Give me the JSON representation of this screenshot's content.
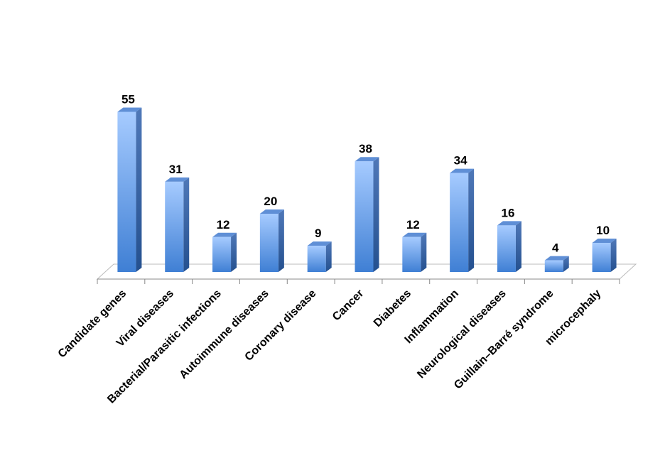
{
  "chart_data": {
    "type": "bar",
    "categories": [
      "Candidate genes",
      "Viral diseases",
      "Bacterial/Parasitic infections",
      "Autoimmune diseases",
      "Coronary disease",
      "Cancer",
      "Diabetes",
      "Inflammation",
      "Neurological diseases",
      "Guillain–Barré syndrome",
      "microcephaly"
    ],
    "values": [
      55,
      31,
      12,
      20,
      9,
      38,
      12,
      34,
      16,
      4,
      10
    ],
    "color": "#4a86d8"
  }
}
